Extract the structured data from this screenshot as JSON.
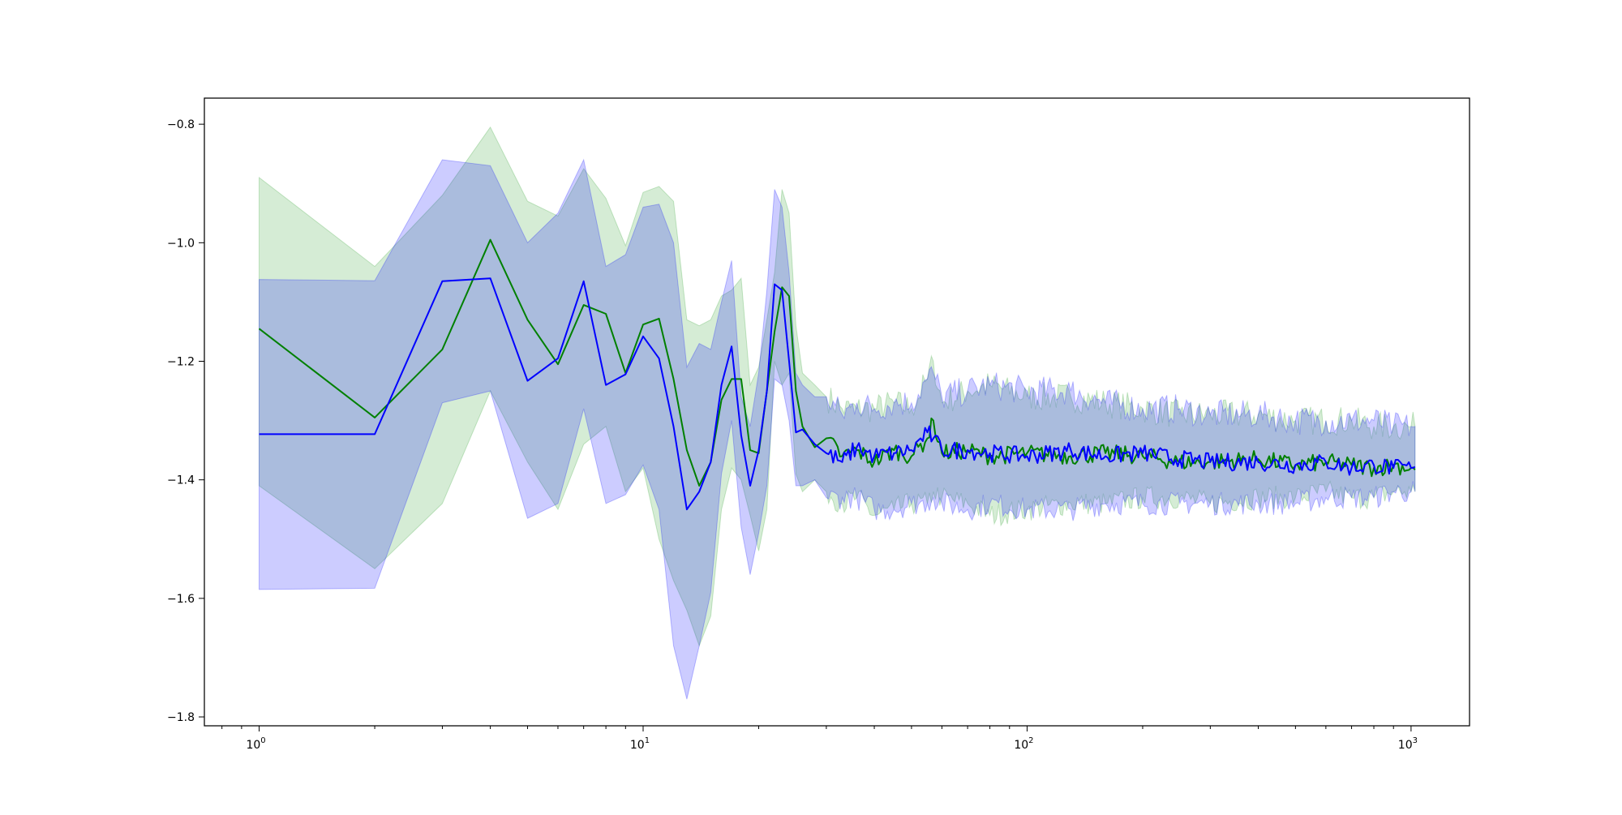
{
  "chart_data": {
    "type": "line",
    "title": "",
    "xlabel": "",
    "ylabel": "",
    "xscale": "log",
    "xlim": [
      0.72,
      1420
    ],
    "ylim": [
      -1.815,
      -0.756
    ],
    "grid": false,
    "legend": "none",
    "x_ticks": [
      {
        "value": 1,
        "label": "10",
        "exponent": "0"
      },
      {
        "value": 10,
        "label": "10",
        "exponent": "1"
      },
      {
        "value": 100,
        "label": "10",
        "exponent": "2"
      },
      {
        "value": 1000,
        "label": "10",
        "exponent": "3"
      }
    ],
    "y_ticks": [
      {
        "value": -0.8,
        "label": "−0.8"
      },
      {
        "value": -1.0,
        "label": "−1.0"
      },
      {
        "value": -1.2,
        "label": "−1.2"
      },
      {
        "value": -1.4,
        "label": "−1.4"
      },
      {
        "value": -1.6,
        "label": "−1.6"
      },
      {
        "value": -1.8,
        "label": "−1.8"
      }
    ],
    "series": [
      {
        "color": "#008000",
        "band_color": "#2ca02c",
        "x": [
          1,
          2,
          3,
          4,
          5,
          6,
          7,
          8,
          9,
          10,
          11,
          12,
          13,
          14,
          15,
          16,
          17,
          18,
          19,
          20,
          21,
          22,
          23,
          24,
          25,
          26,
          28,
          30,
          33,
          36,
          40,
          45,
          50,
          55,
          57,
          60,
          70,
          80,
          100,
          130,
          160,
          200,
          250,
          300,
          400,
          500,
          600,
          700,
          800,
          900,
          1000,
          1024
        ],
        "y": [
          -1.145,
          -1.295,
          -1.18,
          -0.995,
          -1.13,
          -1.205,
          -1.105,
          -1.12,
          -1.22,
          -1.138,
          -1.128,
          -1.23,
          -1.35,
          -1.41,
          -1.37,
          -1.265,
          -1.23,
          -1.23,
          -1.35,
          -1.355,
          -1.25,
          -1.15,
          -1.075,
          -1.09,
          -1.25,
          -1.31,
          -1.345,
          -1.33,
          -1.36,
          -1.35,
          -1.37,
          -1.35,
          -1.36,
          -1.33,
          -1.3,
          -1.355,
          -1.35,
          -1.36,
          -1.355,
          -1.36,
          -1.355,
          -1.36,
          -1.37,
          -1.37,
          -1.365,
          -1.375,
          -1.37,
          -1.375,
          -1.38,
          -1.375,
          -1.38,
          -1.383
        ],
        "upper": [
          -0.89,
          -1.04,
          -0.92,
          -0.805,
          -0.93,
          -0.955,
          -0.875,
          -0.925,
          -1.005,
          -0.915,
          -0.905,
          -0.93,
          -1.13,
          -1.14,
          -1.13,
          -1.09,
          -1.08,
          -1.06,
          -1.24,
          -1.21,
          -1.13,
          -1.05,
          -0.91,
          -0.95,
          -1.14,
          -1.22,
          -1.24,
          -1.26,
          -1.28,
          -1.28,
          -1.28,
          -1.27,
          -1.28,
          -1.23,
          -1.2,
          -1.27,
          -1.25,
          -1.24,
          -1.26,
          -1.26,
          -1.27,
          -1.28,
          -1.29,
          -1.29,
          -1.29,
          -1.3,
          -1.3,
          -1.3,
          -1.31,
          -1.31,
          -1.31,
          -1.31
        ],
        "lower": [
          -1.41,
          -1.55,
          -1.44,
          -1.25,
          -1.37,
          -1.45,
          -1.34,
          -1.31,
          -1.42,
          -1.38,
          -1.5,
          -1.57,
          -1.62,
          -1.68,
          -1.63,
          -1.45,
          -1.38,
          -1.4,
          -1.46,
          -1.52,
          -1.45,
          -1.2,
          -1.24,
          -1.22,
          -1.39,
          -1.42,
          -1.4,
          -1.42,
          -1.44,
          -1.43,
          -1.46,
          -1.45,
          -1.44,
          -1.44,
          -1.42,
          -1.43,
          -1.44,
          -1.46,
          -1.45,
          -1.44,
          -1.44,
          -1.43,
          -1.43,
          -1.44,
          -1.43,
          -1.43,
          -1.42,
          -1.43,
          -1.43,
          -1.42,
          -1.42,
          -1.42
        ]
      },
      {
        "color": "#0000ff",
        "band_color": "#0000ff",
        "x": [
          1,
          2,
          3,
          4,
          5,
          6,
          7,
          8,
          9,
          10,
          11,
          12,
          13,
          14,
          15,
          16,
          17,
          18,
          19,
          20,
          21,
          22,
          23,
          24,
          25,
          26,
          28,
          30,
          33,
          36,
          40,
          45,
          50,
          55,
          57,
          60,
          70,
          80,
          100,
          130,
          160,
          200,
          250,
          300,
          400,
          500,
          600,
          700,
          800,
          900,
          1000,
          1024
        ],
        "y": [
          -1.323,
          -1.323,
          -1.065,
          -1.06,
          -1.233,
          -1.195,
          -1.065,
          -1.24,
          -1.222,
          -1.158,
          -1.195,
          -1.31,
          -1.45,
          -1.42,
          -1.37,
          -1.24,
          -1.175,
          -1.325,
          -1.41,
          -1.35,
          -1.25,
          -1.07,
          -1.08,
          -1.2,
          -1.32,
          -1.315,
          -1.34,
          -1.355,
          -1.37,
          -1.345,
          -1.36,
          -1.355,
          -1.35,
          -1.32,
          -1.33,
          -1.35,
          -1.35,
          -1.355,
          -1.36,
          -1.35,
          -1.36,
          -1.355,
          -1.365,
          -1.37,
          -1.37,
          -1.375,
          -1.37,
          -1.38,
          -1.375,
          -1.38,
          -1.38,
          -1.378
        ],
        "upper": [
          -1.062,
          -1.064,
          -0.86,
          -0.87,
          -1.0,
          -0.95,
          -0.86,
          -1.04,
          -1.02,
          -0.94,
          -0.935,
          -1.0,
          -1.21,
          -1.17,
          -1.18,
          -1.1,
          -1.03,
          -1.26,
          -1.31,
          -1.22,
          -1.08,
          -0.91,
          -0.94,
          -1.05,
          -1.22,
          -1.24,
          -1.26,
          -1.26,
          -1.29,
          -1.27,
          -1.28,
          -1.27,
          -1.27,
          -1.23,
          -1.22,
          -1.26,
          -1.25,
          -1.24,
          -1.25,
          -1.25,
          -1.27,
          -1.28,
          -1.28,
          -1.29,
          -1.29,
          -1.3,
          -1.3,
          -1.3,
          -1.3,
          -1.31,
          -1.31,
          -1.31
        ],
        "lower": [
          -1.585,
          -1.583,
          -1.27,
          -1.25,
          -1.465,
          -1.44,
          -1.28,
          -1.44,
          -1.425,
          -1.375,
          -1.45,
          -1.68,
          -1.77,
          -1.68,
          -1.59,
          -1.39,
          -1.3,
          -1.48,
          -1.56,
          -1.49,
          -1.41,
          -1.23,
          -1.24,
          -1.3,
          -1.41,
          -1.41,
          -1.4,
          -1.43,
          -1.43,
          -1.43,
          -1.45,
          -1.45,
          -1.44,
          -1.44,
          -1.43,
          -1.44,
          -1.45,
          -1.44,
          -1.45,
          -1.45,
          -1.44,
          -1.44,
          -1.44,
          -1.44,
          -1.44,
          -1.44,
          -1.43,
          -1.43,
          -1.43,
          -1.42,
          -1.42,
          -1.42
        ]
      }
    ]
  }
}
